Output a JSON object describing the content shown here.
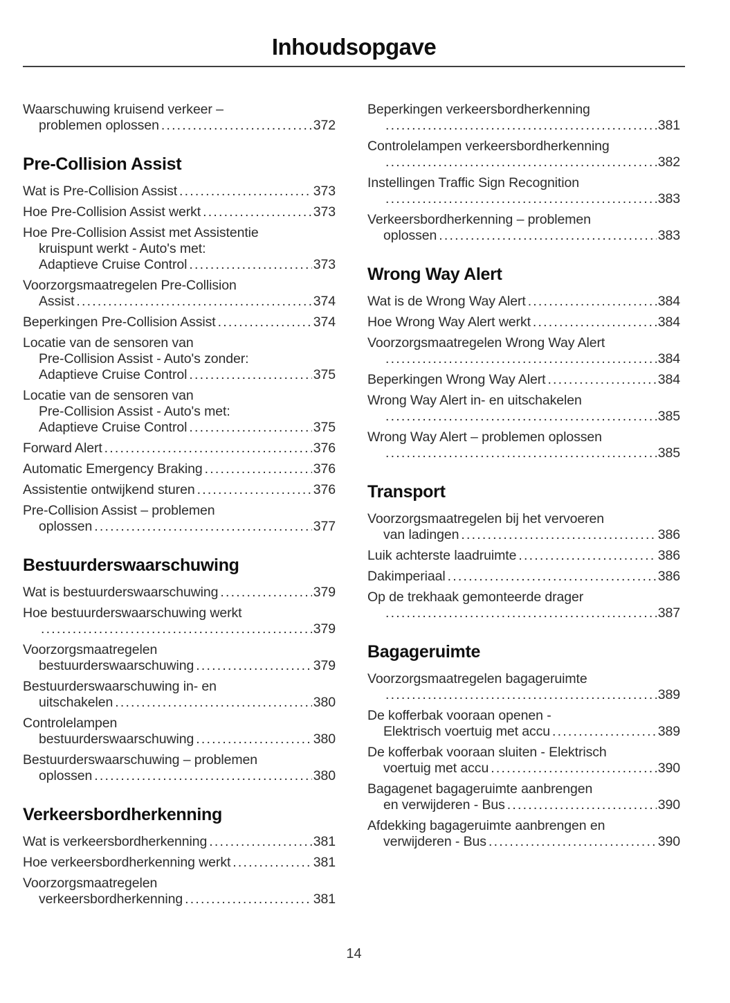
{
  "header": {
    "title": "Inhoudsopgave"
  },
  "footer": {
    "page_number": "14"
  },
  "columns": [
    {
      "groups": [
        {
          "heading": null,
          "entries": [
            {
              "lines": [
                "Waarschuwing kruisend verkeer –",
                "problemen oplossen"
              ],
              "page": "372"
            }
          ]
        },
        {
          "heading": "Pre-Collision Assist",
          "entries": [
            {
              "lines": [
                "Wat is Pre-Collision Assist"
              ],
              "page": "373"
            },
            {
              "lines": [
                "Hoe Pre-Collision Assist werkt"
              ],
              "page": "373"
            },
            {
              "lines": [
                "Hoe Pre-Collision Assist met Assistentie",
                "kruispunt werkt - Auto's met:",
                "Adaptieve Cruise Control"
              ],
              "page": "373"
            },
            {
              "lines": [
                "Voorzorgsmaatregelen Pre-Collision",
                "Assist"
              ],
              "page": "374"
            },
            {
              "lines": [
                "Beperkingen Pre-Collision Assist"
              ],
              "page": "374"
            },
            {
              "lines": [
                "Locatie van de sensoren van",
                "Pre-Collision Assist - Auto's zonder:",
                "Adaptieve Cruise Control"
              ],
              "page": "375"
            },
            {
              "lines": [
                "Locatie van de sensoren van",
                "Pre-Collision Assist - Auto's met:",
                "Adaptieve Cruise Control"
              ],
              "page": "375"
            },
            {
              "lines": [
                "Forward Alert"
              ],
              "page": "376"
            },
            {
              "lines": [
                "Automatic Emergency Braking"
              ],
              "page": "376"
            },
            {
              "lines": [
                "Assistentie ontwijkend sturen"
              ],
              "page": "376"
            },
            {
              "lines": [
                "Pre-Collision Assist – problemen",
                "oplossen"
              ],
              "page": "377"
            }
          ]
        },
        {
          "heading": "Bestuurderswaarschuwing",
          "entries": [
            {
              "lines": [
                "Wat is bestuurderswaarschuwing"
              ],
              "page": "379"
            },
            {
              "lines": [
                "Hoe bestuurderswaarschuwing werkt",
                ""
              ],
              "page": "379"
            },
            {
              "lines": [
                "Voorzorgsmaatregelen",
                "bestuurderswaarschuwing"
              ],
              "page": "379"
            },
            {
              "lines": [
                "Bestuurderswaarschuwing in- en",
                "uitschakelen"
              ],
              "page": "380"
            },
            {
              "lines": [
                "Controlelampen",
                "bestuurderswaarschuwing"
              ],
              "page": "380"
            },
            {
              "lines": [
                "Bestuurderswaarschuwing – problemen",
                "oplossen"
              ],
              "page": "380"
            }
          ]
        },
        {
          "heading": "Verkeersbordherkenning",
          "entries": [
            {
              "lines": [
                "Wat is verkeersbordherkenning"
              ],
              "page": "381"
            },
            {
              "lines": [
                "Hoe verkeersbordherkenning werkt"
              ],
              "page": "381"
            },
            {
              "lines": [
                "Voorzorgsmaatregelen",
                "verkeersbordherkenning"
              ],
              "page": "381"
            }
          ]
        }
      ]
    },
    {
      "groups": [
        {
          "heading": null,
          "entries": [
            {
              "lines": [
                "Beperkingen verkeersbordherkenning",
                ""
              ],
              "page": "381"
            },
            {
              "lines": [
                "Controlelampen verkeersbordherkenning",
                ""
              ],
              "page": "382"
            },
            {
              "lines": [
                "Instellingen Traffic Sign Recognition",
                ""
              ],
              "page": "383"
            },
            {
              "lines": [
                "Verkeersbordherkenning – problemen",
                "oplossen"
              ],
              "page": "383"
            }
          ]
        },
        {
          "heading": "Wrong Way Alert",
          "entries": [
            {
              "lines": [
                "Wat is de Wrong Way Alert"
              ],
              "page": "384"
            },
            {
              "lines": [
                "Hoe Wrong Way Alert werkt"
              ],
              "page": "384"
            },
            {
              "lines": [
                "Voorzorgsmaatregelen Wrong Way Alert",
                ""
              ],
              "page": "384"
            },
            {
              "lines": [
                "Beperkingen Wrong Way Alert"
              ],
              "page": "384"
            },
            {
              "lines": [
                "Wrong Way Alert in- en uitschakelen",
                ""
              ],
              "page": "385"
            },
            {
              "lines": [
                "Wrong Way Alert – problemen oplossen",
                ""
              ],
              "page": "385"
            }
          ]
        },
        {
          "heading": "Transport",
          "entries": [
            {
              "lines": [
                "Voorzorgsmaatregelen bij het vervoeren",
                "van ladingen"
              ],
              "page": "386"
            },
            {
              "lines": [
                "Luik achterste laadruimte"
              ],
              "page": "386"
            },
            {
              "lines": [
                "Dakimperiaal"
              ],
              "page": "386"
            },
            {
              "lines": [
                "Op de trekhaak gemonteerde drager",
                ""
              ],
              "page": "387"
            }
          ]
        },
        {
          "heading": "Bagageruimte",
          "entries": [
            {
              "lines": [
                "Voorzorgsmaatregelen bagageruimte",
                ""
              ],
              "page": "389"
            },
            {
              "lines": [
                "De kofferbak vooraan openen -",
                "Elektrisch voertuig met accu"
              ],
              "page": "389"
            },
            {
              "lines": [
                "De kofferbak vooraan sluiten - Elektrisch",
                "voertuig met accu"
              ],
              "page": "390"
            },
            {
              "lines": [
                "Bagagenet bagageruimte aanbrengen",
                "en verwijderen - Bus"
              ],
              "page": "390"
            },
            {
              "lines": [
                "Afdekking bagageruimte aanbrengen en",
                "verwijderen - Bus"
              ],
              "page": "390"
            }
          ]
        }
      ]
    }
  ]
}
